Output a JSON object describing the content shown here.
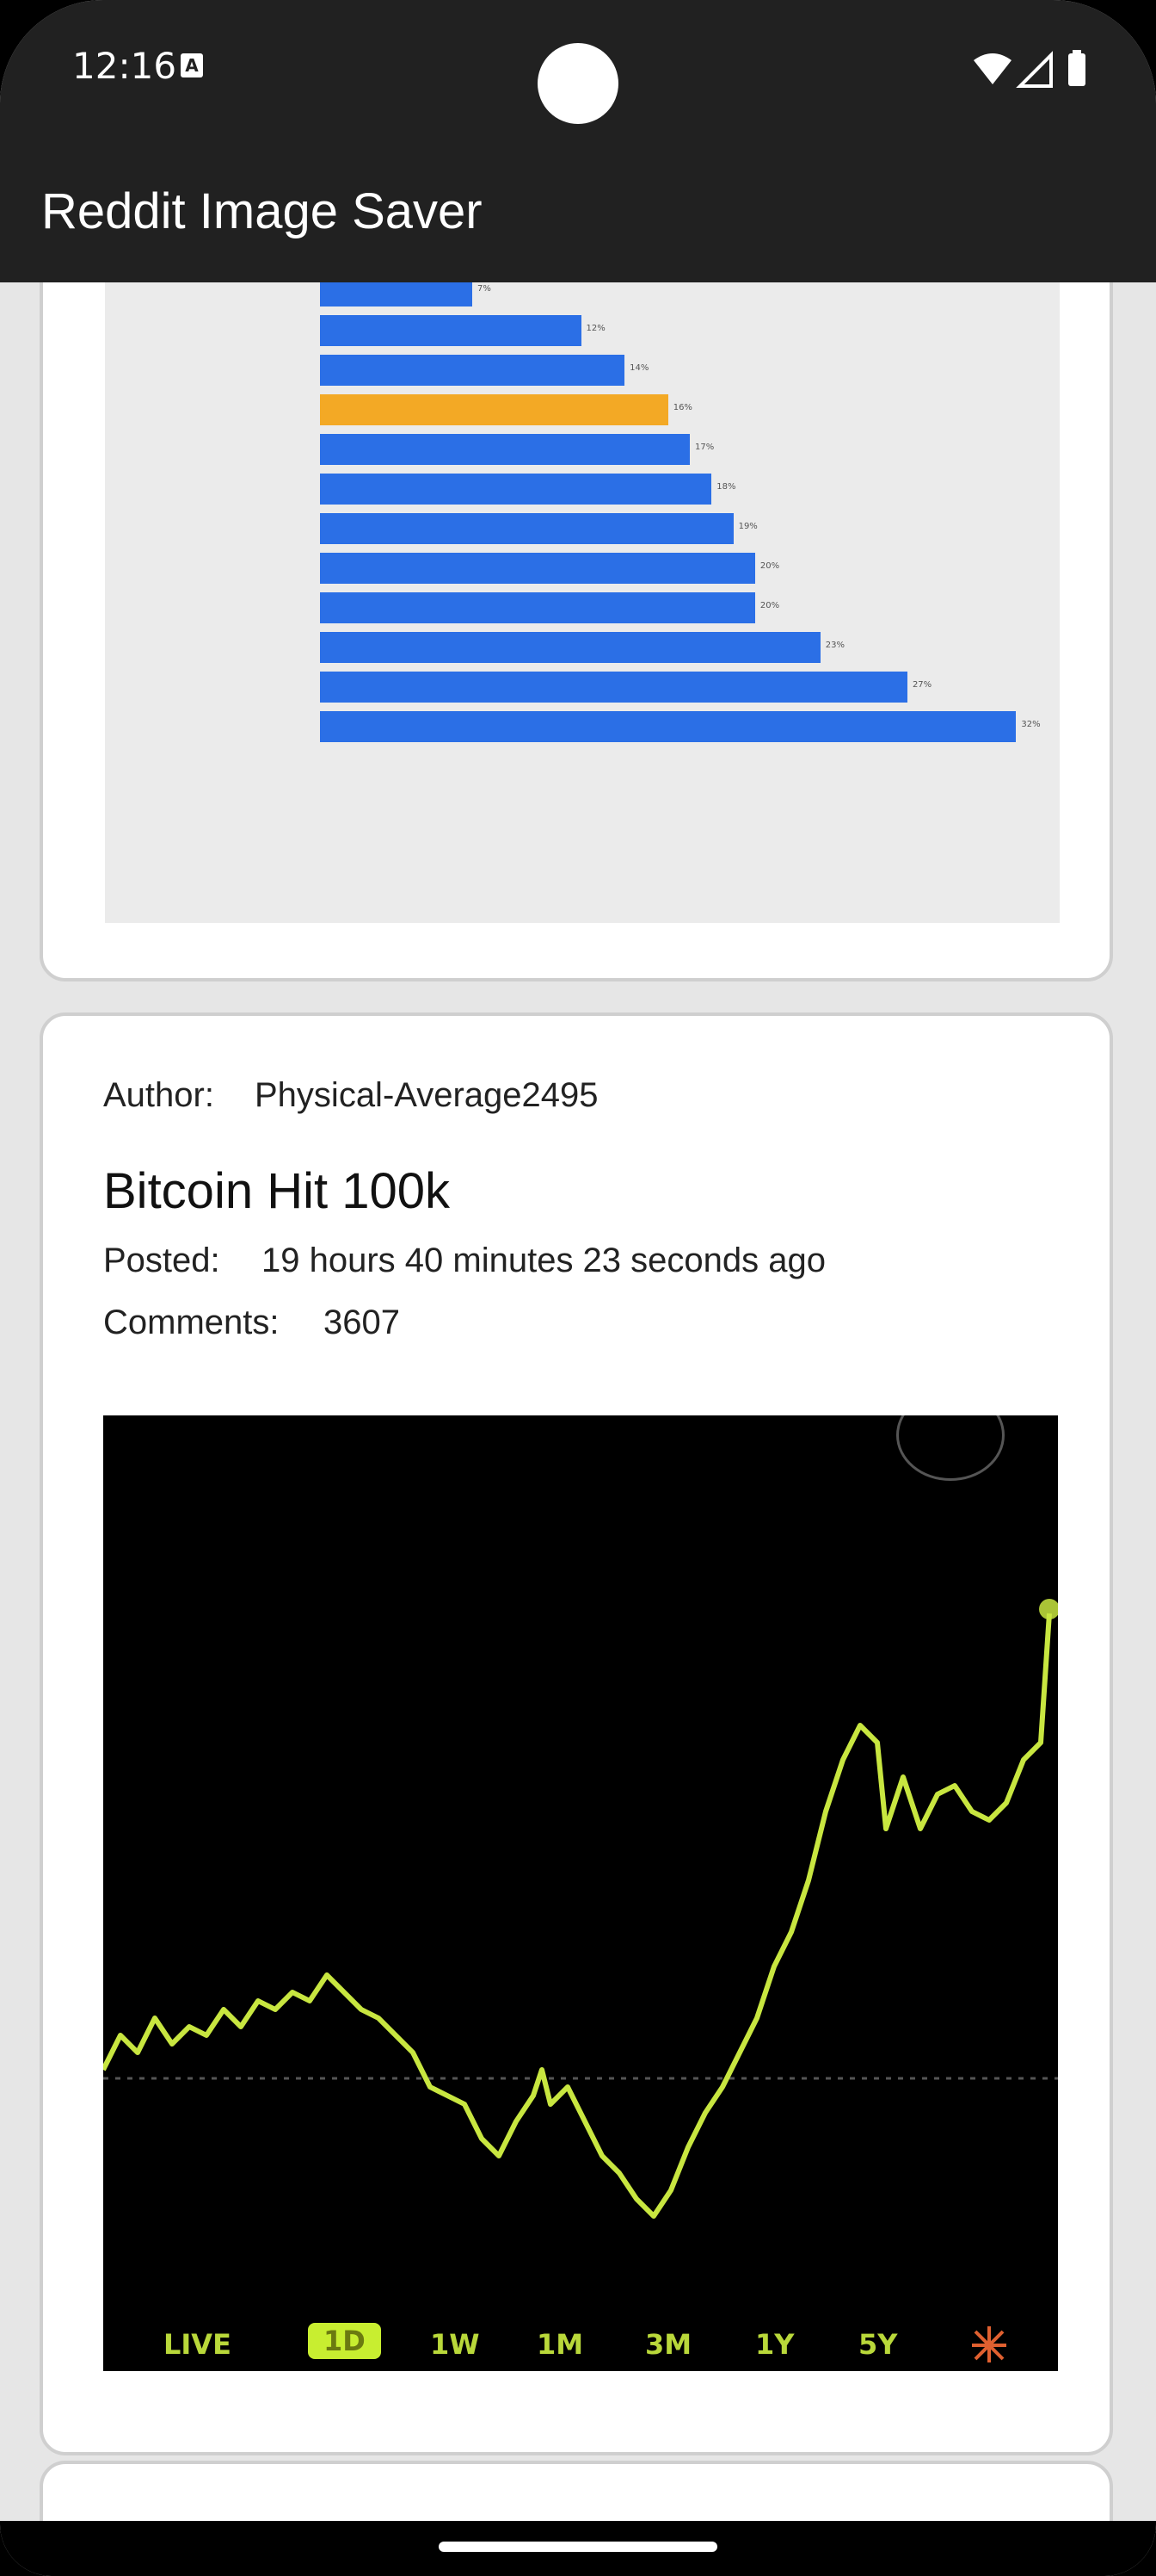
{
  "status_bar": {
    "time": "12:16",
    "notification_icon": "text-a"
  },
  "app_bar": {
    "title": "Reddit Image Saver"
  },
  "post1": {
    "chart_data": {
      "type": "bar",
      "orientation": "horizontal",
      "categories": [
        "",
        "",
        "",
        "",
        "",
        "",
        "",
        "",
        "",
        "",
        "",
        ""
      ],
      "values": [
        7,
        12,
        14,
        16,
        17,
        18,
        19,
        20,
        20,
        23,
        27,
        32
      ],
      "labels": [
        "7%",
        "12%",
        "14%",
        "16%",
        "17%",
        "18%",
        "19%",
        "20%",
        "20%",
        "23%",
        "27%",
        "32%"
      ],
      "highlight_index": 3,
      "colors": {
        "bar": "#2b6fe6",
        "highlight": "#f3a925",
        "background": "#ebebeb"
      },
      "xlim": [
        0,
        34
      ]
    }
  },
  "post2": {
    "author_label": "Author:",
    "author": "Physical-Average2495",
    "title": "Bitcoin Hit 100k",
    "posted_label": "Posted:",
    "posted": "19 hours 40 minutes 23 seconds ago",
    "comments_label": "Comments:",
    "comments": "3607",
    "chart": {
      "ranges": [
        "LIVE",
        "1D",
        "1W",
        "1M",
        "3M",
        "1Y",
        "5Y"
      ],
      "selected_range": "1D",
      "line_color": "#c8e640"
    }
  }
}
